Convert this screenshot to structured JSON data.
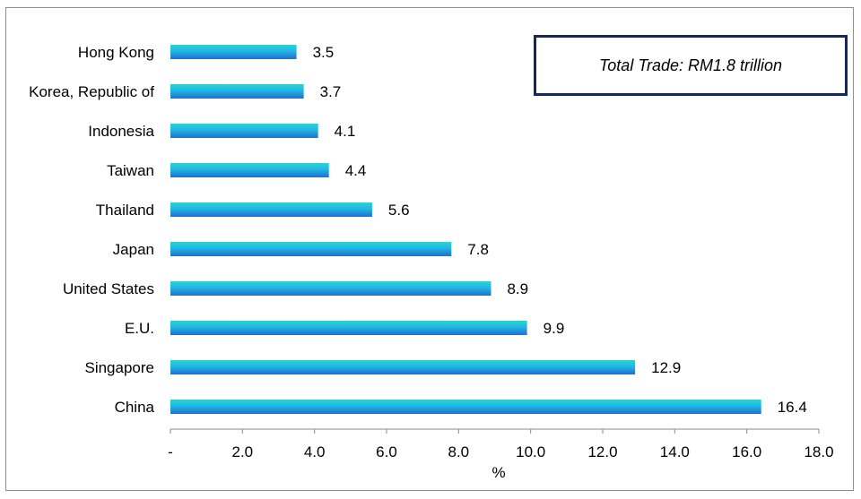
{
  "chart_data": {
    "type": "bar",
    "orientation": "horizontal",
    "categories": [
      "Hong Kong",
      "Korea, Republic of",
      "Indonesia",
      "Taiwan",
      "Thailand",
      "Japan",
      "United States",
      "E.U.",
      "Singapore",
      "China"
    ],
    "values": [
      3.5,
      3.7,
      4.1,
      4.4,
      5.6,
      7.8,
      8.9,
      9.9,
      12.9,
      16.4
    ],
    "value_labels": [
      "3.5",
      "3.7",
      "4.1",
      "4.4",
      "5.6",
      "7.8",
      "8.9",
      "9.9",
      "12.9",
      "16.4"
    ],
    "xlabel": "%",
    "xlim": [
      0,
      18
    ],
    "xticks": [
      "-",
      "2.0",
      "4.0",
      "6.0",
      "8.0",
      "10.0",
      "12.0",
      "14.0",
      "16.0",
      "18.0"
    ],
    "grid": false,
    "bar_colors": {
      "top": "#27d6d0",
      "middle": "#24b4e6",
      "bottom": "#1f6fcf"
    },
    "annotation": "Total Trade: RM1.8 trillion"
  }
}
